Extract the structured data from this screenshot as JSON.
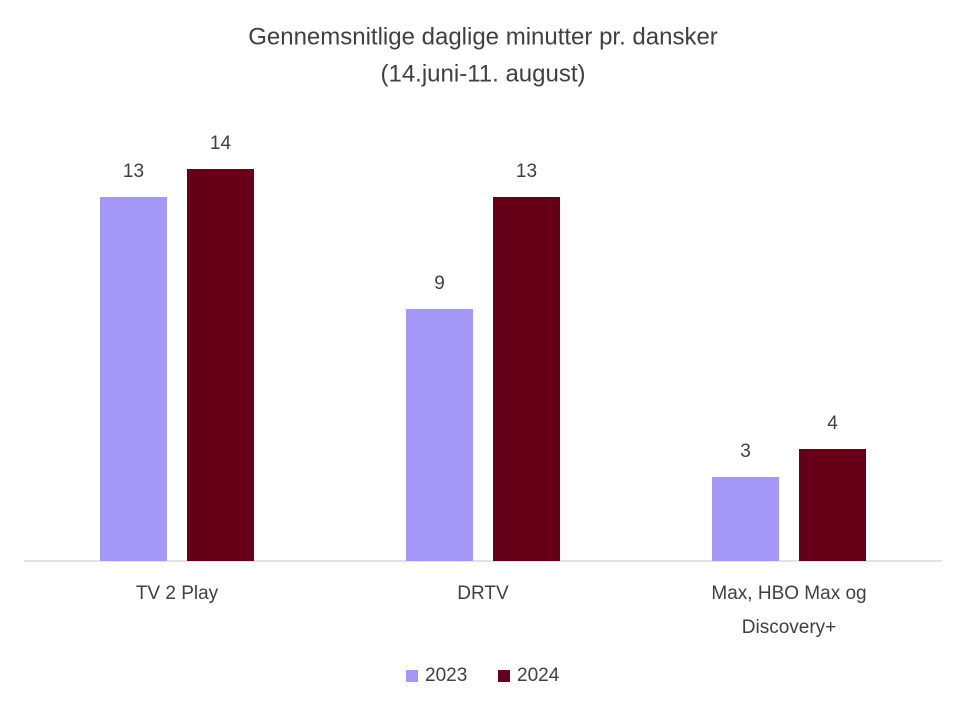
{
  "chart_data": {
    "type": "bar",
    "title": "Gennemsnitlige  daglige minutter pr. dansker",
    "subtitle": "(14.juni-11. august)",
    "categories": [
      "TV 2 Play",
      "DRTV",
      "Max, HBO Max og Discovery+"
    ],
    "series": [
      {
        "name": "2023",
        "color": "#a597f5",
        "values": [
          13,
          9,
          3
        ]
      },
      {
        "name": "2024",
        "color": "#650018",
        "values": [
          14,
          13,
          4
        ]
      }
    ],
    "legend": "bottom"
  }
}
